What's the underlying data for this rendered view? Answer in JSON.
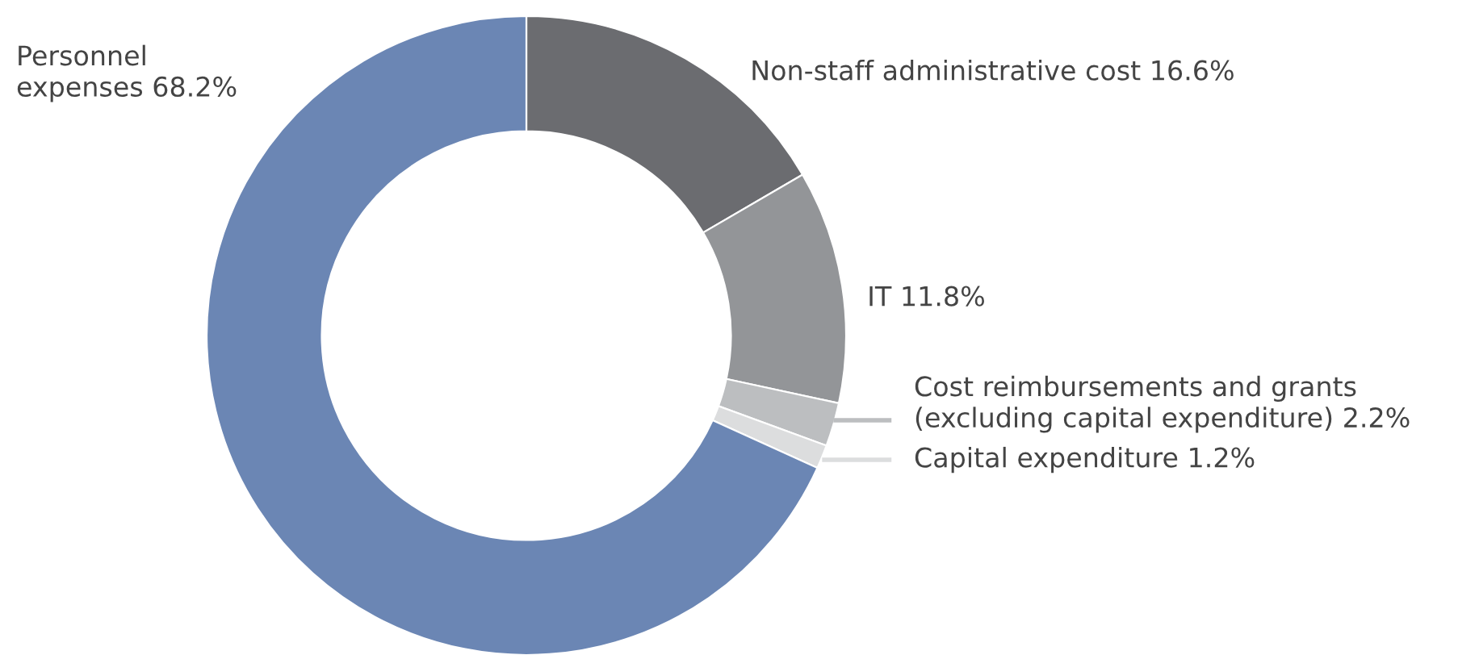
{
  "chart_data": {
    "type": "donut",
    "categories": [
      "Non-staff administrative cost",
      "IT",
      "Cost reimbursements and grants (excluding capital expenditure)",
      "Capital expenditure",
      "Personnel expenses"
    ],
    "values": [
      16.6,
      11.8,
      2.2,
      1.2,
      68.2
    ],
    "value_labels": [
      "16.6%",
      "11.8%",
      "2.2%",
      "1.2%",
      "68.2%"
    ],
    "colors": [
      "#6b6c70",
      "#939598",
      "#bcbec0",
      "#dcddde",
      "#6b86b4"
    ],
    "legend": false
  }
}
